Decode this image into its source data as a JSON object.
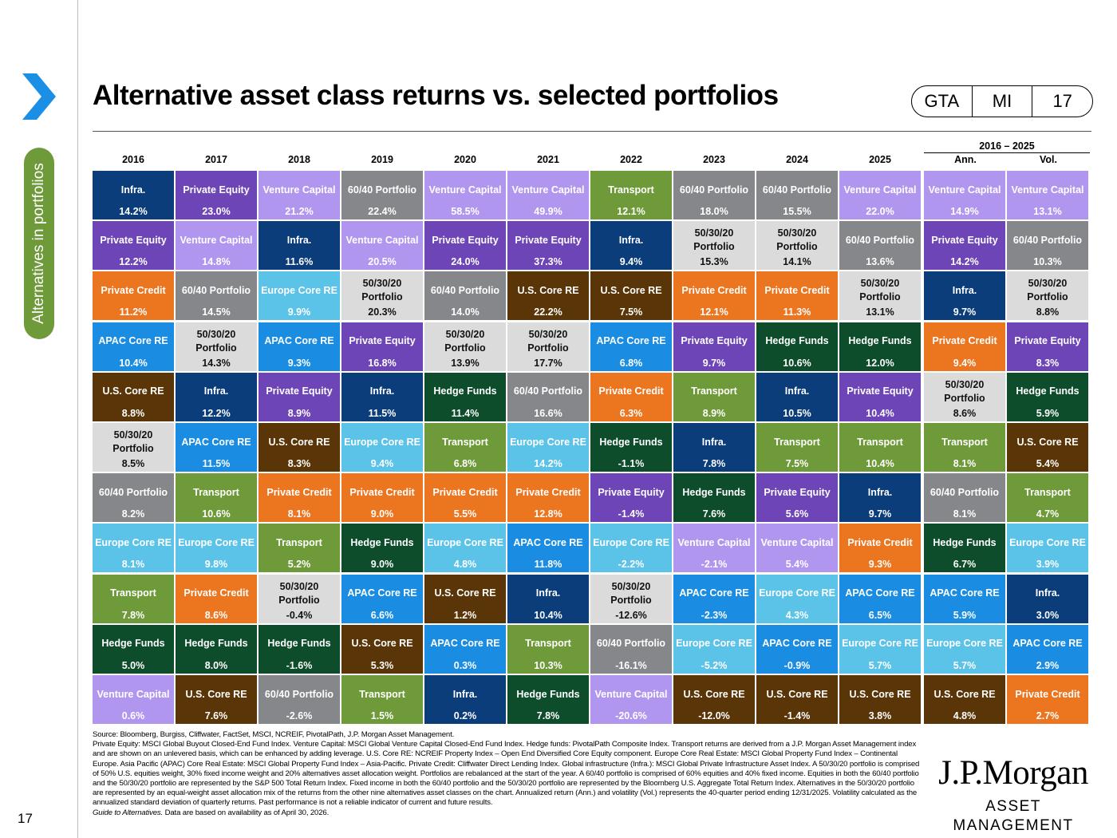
{
  "page": {
    "title": "Alternative asset class returns vs. selected portfolios",
    "badge": [
      "GTA",
      "MI",
      "17"
    ],
    "sidebar_label": "Alternatives in portfolios",
    "page_number": "17"
  },
  "chart_data": {
    "type": "table",
    "columns": [
      "2016",
      "2017",
      "2018",
      "2019",
      "2020",
      "2021",
      "2022",
      "2023",
      "2024",
      "2025",
      "Ann.",
      "Vol."
    ],
    "range_label": "2016 – 2025",
    "colors": {
      "Infra.": "#0b3d7a",
      "Private Equity": "#6d45b6",
      "Venture Capital": "#b196f0",
      "60/40 Portfolio": "#85878b",
      "50/30/20 Portfolio": "#dbdbdb",
      "Transport": "#6f9a3a",
      "Private Credit": "#ec7520",
      "Europe Core RE": "#5bc2e8",
      "APAC Core RE": "#1a8de3",
      "U.S. Core RE": "#5a3508",
      "Hedge Funds": "#0e4d2c"
    },
    "rows": [
      [
        [
          "Infra.",
          "14.2%"
        ],
        [
          "Private Equity",
          "23.0%"
        ],
        [
          "Venture Capital",
          "21.2%"
        ],
        [
          "60/40 Portfolio",
          "22.4%"
        ],
        [
          "Venture Capital",
          "58.5%"
        ],
        [
          "Venture Capital",
          "49.9%"
        ],
        [
          "Transport",
          "12.1%"
        ],
        [
          "60/40 Portfolio",
          "18.0%"
        ],
        [
          "60/40 Portfolio",
          "15.5%"
        ],
        [
          "Venture Capital",
          "22.0%"
        ],
        [
          "Venture Capital",
          "14.9%"
        ],
        [
          "Venture Capital",
          "13.1%"
        ]
      ],
      [
        [
          "Private Equity",
          "12.2%"
        ],
        [
          "Venture Capital",
          "14.8%"
        ],
        [
          "Infra.",
          "11.6%"
        ],
        [
          "Venture Capital",
          "20.5%"
        ],
        [
          "Private Equity",
          "24.0%"
        ],
        [
          "Private Equity",
          "37.3%"
        ],
        [
          "Infra.",
          "9.4%"
        ],
        [
          "50/30/20 Portfolio",
          "15.3%"
        ],
        [
          "50/30/20 Portfolio",
          "14.1%"
        ],
        [
          "60/40 Portfolio",
          "13.6%"
        ],
        [
          "Private Equity",
          "14.2%"
        ],
        [
          "60/40 Portfolio",
          "10.3%"
        ]
      ],
      [
        [
          "Private Credit",
          "11.2%"
        ],
        [
          "60/40 Portfolio",
          "14.5%"
        ],
        [
          "Europe Core RE",
          "9.9%"
        ],
        [
          "50/30/20 Portfolio",
          "20.3%"
        ],
        [
          "60/40 Portfolio",
          "14.0%"
        ],
        [
          "U.S. Core RE",
          "22.2%"
        ],
        [
          "U.S. Core RE",
          "7.5%"
        ],
        [
          "Private Credit",
          "12.1%"
        ],
        [
          "Private Credit",
          "11.3%"
        ],
        [
          "50/30/20 Portfolio",
          "13.1%"
        ],
        [
          "Infra.",
          "9.7%"
        ],
        [
          "50/30/20 Portfolio",
          "8.8%"
        ]
      ],
      [
        [
          "APAC Core RE",
          "10.4%"
        ],
        [
          "50/30/20 Portfolio",
          "14.3%"
        ],
        [
          "APAC Core RE",
          "9.3%"
        ],
        [
          "Private Equity",
          "16.8%"
        ],
        [
          "50/30/20 Portfolio",
          "13.9%"
        ],
        [
          "50/30/20 Portfolio",
          "17.7%"
        ],
        [
          "APAC Core RE",
          "6.8%"
        ],
        [
          "Private Equity",
          "9.7%"
        ],
        [
          "Hedge Funds",
          "10.6%"
        ],
        [
          "Hedge Funds",
          "12.0%"
        ],
        [
          "Private Credit",
          "9.4%"
        ],
        [
          "Private Equity",
          "8.3%"
        ]
      ],
      [
        [
          "U.S. Core RE",
          "8.8%"
        ],
        [
          "Infra.",
          "12.2%"
        ],
        [
          "Private Equity",
          "8.9%"
        ],
        [
          "Infra.",
          "11.5%"
        ],
        [
          "Hedge Funds",
          "11.4%"
        ],
        [
          "60/40 Portfolio",
          "16.6%"
        ],
        [
          "Private Credit",
          "6.3%"
        ],
        [
          "Transport",
          "8.9%"
        ],
        [
          "Infra.",
          "10.5%"
        ],
        [
          "Private Equity",
          "10.4%"
        ],
        [
          "50/30/20 Portfolio",
          "8.6%"
        ],
        [
          "Hedge Funds",
          "5.9%"
        ]
      ],
      [
        [
          "50/30/20 Portfolio",
          "8.5%"
        ],
        [
          "APAC Core RE",
          "11.5%"
        ],
        [
          "U.S. Core RE",
          "8.3%"
        ],
        [
          "Europe Core RE",
          "9.4%"
        ],
        [
          "Transport",
          "6.8%"
        ],
        [
          "Europe Core RE",
          "14.2%"
        ],
        [
          "Hedge Funds",
          "-1.1%"
        ],
        [
          "Infra.",
          "7.8%"
        ],
        [
          "Transport",
          "7.5%"
        ],
        [
          "Transport",
          "10.4%"
        ],
        [
          "Transport",
          "8.1%"
        ],
        [
          "U.S. Core RE",
          "5.4%"
        ]
      ],
      [
        [
          "60/40 Portfolio",
          "8.2%"
        ],
        [
          "Transport",
          "10.6%"
        ],
        [
          "Private Credit",
          "8.1%"
        ],
        [
          "Private Credit",
          "9.0%"
        ],
        [
          "Private Credit",
          "5.5%"
        ],
        [
          "Private Credit",
          "12.8%"
        ],
        [
          "Private Equity",
          "-1.4%"
        ],
        [
          "Hedge Funds",
          "7.6%"
        ],
        [
          "Private Equity",
          "5.6%"
        ],
        [
          "Infra.",
          "9.7%"
        ],
        [
          "60/40 Portfolio",
          "8.1%"
        ],
        [
          "Transport",
          "4.7%"
        ]
      ],
      [
        [
          "Europe Core RE",
          "8.1%"
        ],
        [
          "Europe Core RE",
          "9.8%"
        ],
        [
          "Transport",
          "5.2%"
        ],
        [
          "Hedge Funds",
          "9.0%"
        ],
        [
          "Europe Core RE",
          "4.8%"
        ],
        [
          "APAC Core RE",
          "11.8%"
        ],
        [
          "Europe Core RE",
          "-2.2%"
        ],
        [
          "Venture Capital",
          "-2.1%"
        ],
        [
          "Venture Capital",
          "5.4%"
        ],
        [
          "Private Credit",
          "9.3%"
        ],
        [
          "Hedge Funds",
          "6.7%"
        ],
        [
          "Europe Core RE",
          "3.9%"
        ]
      ],
      [
        [
          "Transport",
          "7.8%"
        ],
        [
          "Private Credit",
          "8.6%"
        ],
        [
          "50/30/20 Portfolio",
          "-0.4%"
        ],
        [
          "APAC Core RE",
          "6.6%"
        ],
        [
          "U.S. Core RE",
          "1.2%"
        ],
        [
          "Infra.",
          "10.4%"
        ],
        [
          "50/30/20 Portfolio",
          "-12.6%"
        ],
        [
          "APAC Core RE",
          "-2.3%"
        ],
        [
          "Europe Core RE",
          "4.3%"
        ],
        [
          "APAC Core RE",
          "6.5%"
        ],
        [
          "APAC Core RE",
          "5.9%"
        ],
        [
          "Infra.",
          "3.0%"
        ]
      ],
      [
        [
          "Hedge Funds",
          "5.0%"
        ],
        [
          "Hedge Funds",
          "8.0%"
        ],
        [
          "Hedge Funds",
          "-1.6%"
        ],
        [
          "U.S. Core RE",
          "5.3%"
        ],
        [
          "APAC Core RE",
          "0.3%"
        ],
        [
          "Transport",
          "10.3%"
        ],
        [
          "60/40 Portfolio",
          "-16.1%"
        ],
        [
          "Europe Core RE",
          "-5.2%"
        ],
        [
          "APAC Core RE",
          "-0.9%"
        ],
        [
          "Europe Core RE",
          "5.7%"
        ],
        [
          "Europe Core RE",
          "5.7%"
        ],
        [
          "APAC Core RE",
          "2.9%"
        ]
      ],
      [
        [
          "Venture Capital",
          "0.6%"
        ],
        [
          "U.S. Core RE",
          "7.6%"
        ],
        [
          "60/40 Portfolio",
          "-2.6%"
        ],
        [
          "Transport",
          "1.5%"
        ],
        [
          "Infra.",
          "0.2%"
        ],
        [
          "Hedge Funds",
          "7.8%"
        ],
        [
          "Venture Capital",
          "-20.6%"
        ],
        [
          "U.S. Core RE",
          "-12.0%"
        ],
        [
          "U.S. Core RE",
          "-1.4%"
        ],
        [
          "U.S. Core RE",
          "3.8%"
        ],
        [
          "U.S. Core RE",
          "4.8%"
        ],
        [
          "Private Credit",
          "2.7%"
        ]
      ]
    ]
  },
  "footnotes": [
    "Source: Bloomberg, Burgiss, Cliffwater, FactSet, MSCI, NCREIF, PivotalPath, J.P. Morgan Asset Management.",
    "Private Equity: MSCI Global Buyout Closed-End Fund Index. Venture Capital: MSCI Global Venture Capital Closed-End Fund Index. Hedge funds: PivotalPath Composite Index. Transport returns are derived from a J.P. Morgan Asset Management index and are shown on an unlevered basis, which can be enhanced by adding leverage. U.S. Core RE: NCREIF Property Index – Open End Diversified Core Equity component. Europe Core Real Estate: MSCI Global Property Fund Index – Continental Europe. Asia Pacific (APAC) Core Real Estate: MSCI Global Property Fund Index – Asia-Pacific. Private Credit: Cliffwater Direct Lending Index. Global infrastructure (Infra.): MSCI Global Private Infrastructure Asset Index. A 50/30/20 portfolio is comprised of 50% U.S. equities weight, 30% fixed income weight and 20% alternatives asset allocation weight. Portfolios are rebalanced at the start of the year. A 60/40 portfolio is comprised of 60% equities and 40% fixed income. Equities in both the 60/40 portfolio and the 50/30/20 portfolio are represented by the S&P 500 Total Return Index. Fixed income in both the 60/40 portfolio and the 50/30/20 portfolio are represented by the Bloomberg U.S. Aggregate Total Return Index. Alternatives in the 50/30/20 portfolio are represented by an equal-weight asset allocation mix of the returns from the other nine alternatives asset classes on the chart. Annualized return (Ann.) and volatility (Vol.) represents the 40-quarter period ending 12/31/2025. Volatility calculated as the annualized standard deviation of quarterly returns. Past performance is not a reliable indicator of current and future results."
  ],
  "footnote_guide": "Guide to Alternatives.",
  "footnote_tail": " Data are based on availability as of April 30, 2026.",
  "logo": {
    "main": "J.P.Morgan",
    "sub": "ASSET MANAGEMENT"
  }
}
